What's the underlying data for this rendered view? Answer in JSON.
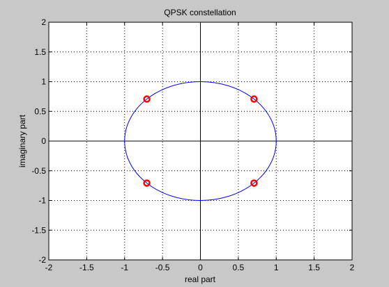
{
  "chart_data": {
    "type": "scatter",
    "title": "QPSK constellation",
    "xlabel": "real part",
    "ylabel": "imaginary part",
    "xlim": [
      -2,
      2
    ],
    "ylim": [
      -2,
      2
    ],
    "xticks": [
      -2,
      -1.5,
      -1,
      -0.5,
      0,
      0.5,
      1,
      1.5,
      2
    ],
    "yticks": [
      -2,
      -1.5,
      -1,
      -0.5,
      0,
      0.5,
      1,
      1.5,
      2
    ],
    "grid": true,
    "series": [
      {
        "type": "scatter",
        "marker": "circle",
        "color": "#ff0000",
        "points": [
          {
            "x": 0.707,
            "y": 0.707
          },
          {
            "x": -0.707,
            "y": 0.707
          },
          {
            "x": -0.707,
            "y": -0.707
          },
          {
            "x": 0.707,
            "y": -0.707
          }
        ]
      },
      {
        "type": "line",
        "shape": "unit-circle",
        "radius": 1,
        "color": "#0000ff"
      }
    ],
    "axes_lines": {
      "x": 0,
      "y": 0,
      "color": "#000000"
    }
  }
}
